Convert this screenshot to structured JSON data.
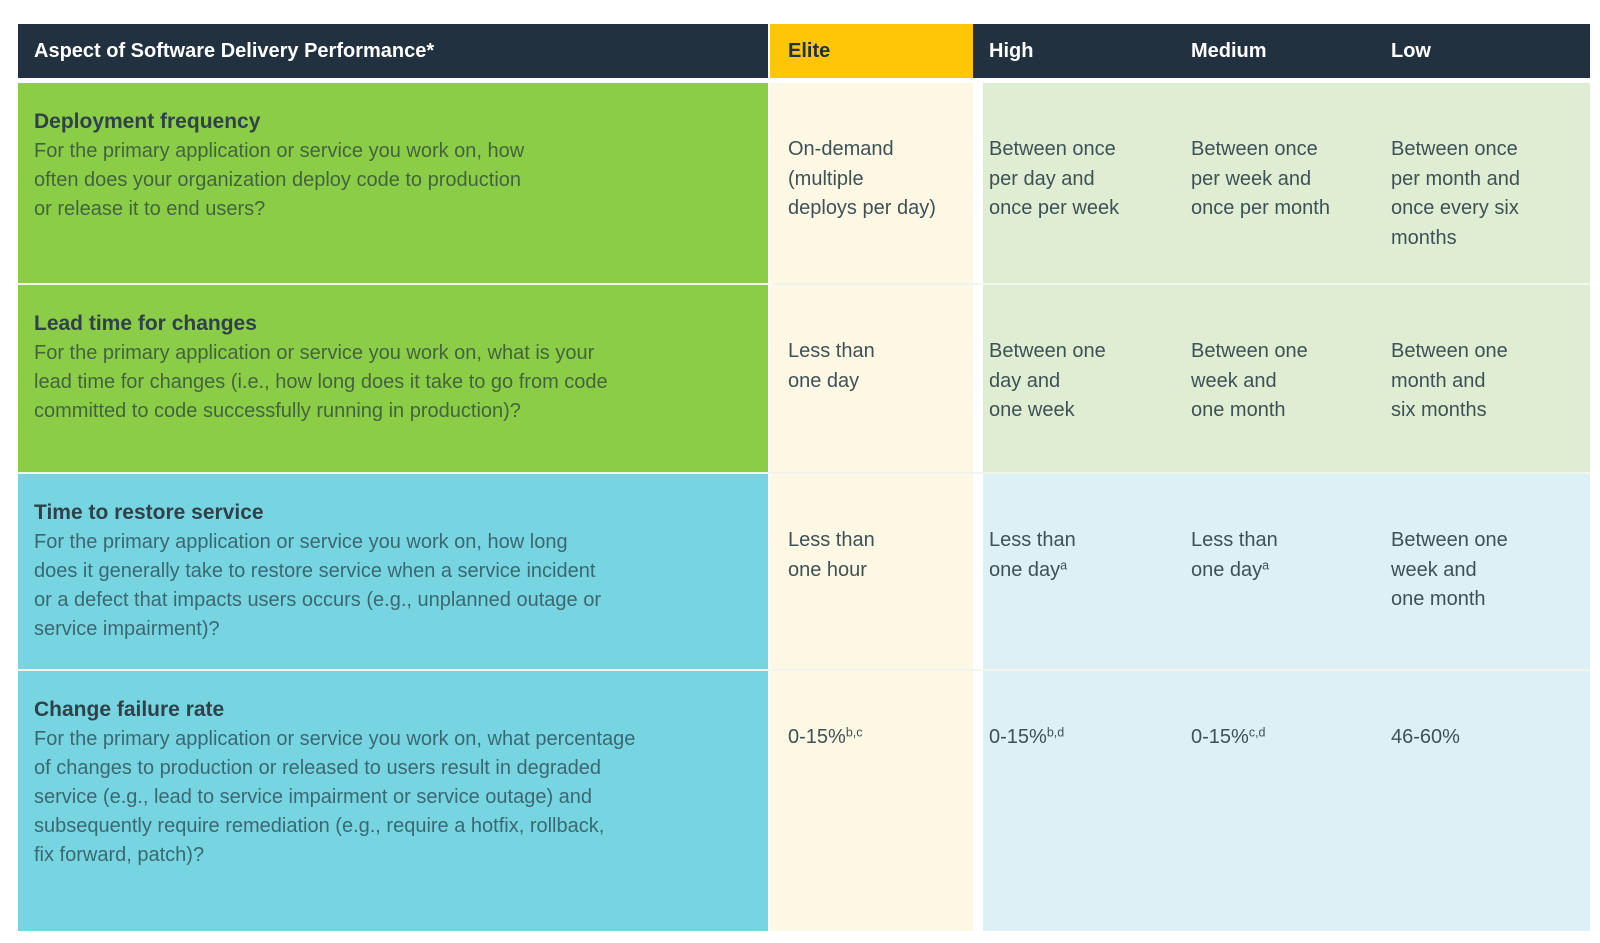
{
  "colors": {
    "navy": "#22313f",
    "yellow": "#fec607",
    "green": "#8ccd48",
    "cyan": "#77d5e2",
    "cream": "#fdf8e3",
    "light-green": "#dfeed2",
    "light-blue": "#dcf0f5",
    "header-text": "#ffffff",
    "elite-header-text": "#22313f",
    "title-text": "#2f4149",
    "question-text": "rgba(28,45,54,0.66)",
    "value-text": "#3f5157"
  },
  "header": {
    "aspect": "Aspect of Software Delivery Performance*",
    "elite": "Elite",
    "high": "High",
    "medium": "Medium",
    "low": "Low"
  },
  "rows": [
    {
      "title": "Deployment frequency",
      "question": "For the primary application or service you work on, how\noften does your organization deploy code to production\nor release it to end users?",
      "cells": {
        "elite": {
          "text": "On-demand\n(multiple\ndeploys per day)",
          "sup": ""
        },
        "high": {
          "text": "Between once\nper day and\nonce per week",
          "sup": ""
        },
        "medium": {
          "text": "Between once\nper week and\nonce per month",
          "sup": ""
        },
        "low": {
          "text": "Between once\nper month and\nonce every six\nmonths",
          "sup": ""
        }
      }
    },
    {
      "title": "Lead time for changes",
      "question": "For the primary application or service you work on, what is your\nlead time for changes (i.e., how long does it take to go from code\ncommitted to code successfully running in production)?",
      "cells": {
        "elite": {
          "text": "Less than\none day",
          "sup": ""
        },
        "high": {
          "text": "Between one\nday and\none week",
          "sup": ""
        },
        "medium": {
          "text": "Between one\nweek and\none month",
          "sup": ""
        },
        "low": {
          "text": "Between one\nmonth and\nsix months",
          "sup": ""
        }
      }
    },
    {
      "title": "Time to restore service",
      "question": "For the primary application or service you work on, how long\ndoes it generally take to restore service when a service incident\nor a defect that impacts users occurs (e.g., unplanned outage or\nservice impairment)?",
      "cells": {
        "elite": {
          "text": "Less than\none hour",
          "sup": ""
        },
        "high": {
          "text": "Less than\none day",
          "sup": "a"
        },
        "medium": {
          "text": "Less than\none day",
          "sup": "a"
        },
        "low": {
          "text": "Between one\nweek and\none month",
          "sup": ""
        }
      }
    },
    {
      "title": "Change failure rate",
      "question": "For the primary application or service you work on, what percentage\nof changes to production or released to users result in degraded\nservice (e.g., lead to service impairment or service outage) and\nsubsequently require remediation (e.g., require a hotfix, rollback,\nfix forward, patch)?",
      "cells": {
        "elite": {
          "text": "0-15%",
          "sup": "b,c"
        },
        "high": {
          "text": "0-15%",
          "sup": "b,d"
        },
        "medium": {
          "text": "0-15%",
          "sup": "c,d"
        },
        "low": {
          "text": "46-60%",
          "sup": ""
        }
      }
    }
  ],
  "chart_data": {
    "type": "table",
    "columns": [
      "Aspect of Software Delivery Performance*",
      "Elite",
      "High",
      "Medium",
      "Low"
    ],
    "rows": [
      [
        "Deployment frequency",
        "On-demand (multiple deploys per day)",
        "Between once per day and once per week",
        "Between once per week and once per month",
        "Between once per month and once every six months"
      ],
      [
        "Lead time for changes",
        "Less than one day",
        "Between one day and one week",
        "Between one week and one month",
        "Between one month and six months"
      ],
      [
        "Time to restore service",
        "Less than one hour",
        "Less than one day (a)",
        "Less than one day (a)",
        "Between one week and one month"
      ],
      [
        "Change failure rate",
        "0-15% (b,c)",
        "0-15% (b,d)",
        "0-15% (c,d)",
        "46-60%"
      ]
    ]
  }
}
